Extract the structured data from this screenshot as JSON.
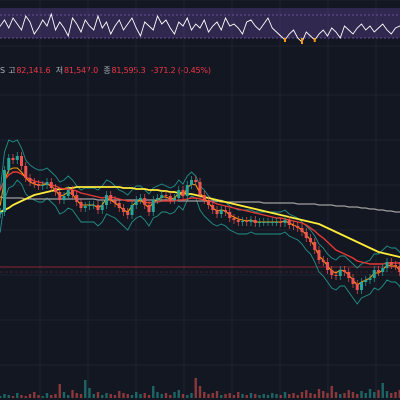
{
  "ohlc": {
    "lead": "S",
    "high_label": "고",
    "high": "82,141.6",
    "low_label": "저",
    "low": "81,547.0",
    "close_label": "종",
    "close": "81,595.3",
    "change": "-371.2 (-0.45%)"
  },
  "colors": {
    "background": "#131722",
    "grid": "#1f2330",
    "up": "#26a69a",
    "down": "#ef5350",
    "ma_fast": "#ff9800",
    "ma_mid": "#e53935",
    "ma_slow": "#ffeb3b",
    "ma_long": "#9e9e9e",
    "bollinger": "#26a69a",
    "oscillator": "#ffffff",
    "osc_band": "#7e57c2",
    "osc_fill": "#ff9800",
    "price_line": "#f23645"
  },
  "chart_data": {
    "type": "line",
    "price": [
      214,
      212,
      170,
      158,
      160,
      156,
      166,
      178,
      182,
      184,
      186,
      185,
      182,
      188,
      192,
      200,
      196,
      190,
      195,
      202,
      208,
      206,
      205,
      205,
      210,
      205,
      195,
      200,
      203,
      208,
      212,
      215,
      205,
      200,
      198,
      205,
      212,
      200,
      198,
      195,
      196,
      200,
      198,
      190,
      196,
      185,
      180,
      182,
      195,
      200,
      205,
      210,
      214,
      210,
      212,
      218,
      220,
      222,
      221,
      222,
      220,
      223,
      222,
      222,
      222,
      222,
      222,
      223,
      220,
      225,
      226,
      228,
      232,
      238,
      242,
      250,
      260,
      262,
      270,
      275,
      276,
      270,
      272,
      278,
      284,
      290,
      282,
      280,
      278,
      270,
      272,
      268,
      262,
      265,
      266,
      272,
      290
    ],
    "bollinger_upper": [
      200,
      190,
      152,
      140,
      142,
      140,
      148,
      160,
      165,
      168,
      170,
      170,
      168,
      172,
      176,
      182,
      180,
      176,
      180,
      186,
      190,
      188,
      188,
      188,
      190,
      186,
      180,
      182,
      186,
      190,
      192,
      195,
      190,
      186,
      186,
      190,
      194,
      188,
      186,
      184,
      186,
      188,
      186,
      180,
      184,
      176,
      172,
      176,
      186,
      190,
      196,
      200,
      202,
      200,
      202,
      206,
      208,
      210,
      210,
      210,
      210,
      212,
      212,
      212,
      212,
      212,
      212,
      212,
      210,
      214,
      216,
      218,
      222,
      226,
      230,
      236,
      244,
      248,
      254,
      258,
      260,
      256,
      256,
      260,
      264,
      268,
      264,
      262,
      260,
      254,
      254,
      250,
      246,
      248,
      248,
      252,
      260
    ],
    "bollinger_lower": [
      230,
      232,
      200,
      188,
      186,
      180,
      184,
      194,
      198,
      200,
      202,
      202,
      198,
      202,
      206,
      214,
      212,
      208,
      210,
      216,
      222,
      222,
      222,
      222,
      226,
      222,
      214,
      216,
      218,
      222,
      226,
      230,
      222,
      218,
      216,
      220,
      226,
      218,
      216,
      212,
      212,
      214,
      212,
      206,
      210,
      200,
      196,
      198,
      210,
      216,
      220,
      224,
      226,
      224,
      226,
      230,
      232,
      234,
      234,
      234,
      232,
      234,
      234,
      234,
      234,
      234,
      234,
      234,
      232,
      236,
      238,
      240,
      244,
      250,
      254,
      262,
      272,
      276,
      282,
      288,
      290,
      286,
      286,
      292,
      298,
      304,
      298,
      296,
      294,
      288,
      290,
      286,
      280,
      282,
      282,
      286,
      300
    ],
    "ma_fast": [
      210,
      205,
      180,
      170,
      168,
      168,
      172,
      178,
      182,
      184,
      185,
      185,
      184,
      186,
      190,
      196,
      195,
      192,
      194,
      200,
      205,
      205,
      205,
      205,
      208,
      205,
      198,
      200,
      203,
      206,
      210,
      212,
      206,
      202,
      200,
      204,
      208,
      202,
      200,
      197,
      197,
      199,
      198,
      193,
      196,
      188,
      184,
      185,
      193,
      198,
      203,
      208,
      211,
      210,
      211,
      215,
      217,
      219,
      220,
      221,
      220,
      222,
      222,
      222,
      222,
      222,
      222,
      222,
      221,
      223,
      225,
      227,
      230,
      235,
      240,
      247,
      256,
      260,
      266,
      271,
      273,
      270,
      271,
      275,
      280,
      285,
      282,
      280,
      278,
      273,
      273,
      270,
      265,
      266,
      266,
      270,
      280
    ],
    "ma_mid": [
      195,
      190,
      180,
      175,
      172,
      172,
      174,
      177,
      179,
      181,
      182,
      183,
      184,
      185,
      186,
      188,
      189,
      189,
      190,
      191,
      193,
      194,
      195,
      196,
      197,
      198,
      197,
      197,
      198,
      199,
      200,
      201,
      201,
      201,
      201,
      202,
      203,
      202,
      202,
      201,
      201,
      201,
      201,
      200,
      200,
      199,
      198,
      198,
      199,
      200,
      201,
      202,
      204,
      205,
      206,
      207,
      208,
      209,
      210,
      211,
      212,
      213,
      214,
      215,
      216,
      217,
      218,
      218,
      219,
      220,
      221,
      222,
      223,
      225,
      228,
      231,
      235,
      238,
      242,
      246,
      250,
      252,
      254,
      256,
      258,
      261,
      262,
      263,
      264,
      264,
      264,
      264,
      263,
      263,
      263,
      263,
      265
    ],
    "ma_slow": [
      213,
      212,
      210,
      208,
      205,
      203,
      201,
      199,
      197,
      195,
      194,
      193,
      192,
      191,
      190,
      189,
      189,
      188,
      188,
      187,
      187,
      187,
      187,
      187,
      187,
      187,
      187,
      187,
      187,
      187,
      188,
      188,
      188,
      189,
      189,
      189,
      190,
      190,
      190,
      191,
      191,
      192,
      192,
      193,
      193,
      194,
      194,
      195,
      196,
      197,
      198,
      199,
      200,
      201,
      202,
      203,
      204,
      205,
      206,
      207,
      208,
      209,
      210,
      211,
      212,
      213,
      214,
      215,
      216,
      217,
      218,
      219,
      220,
      221,
      222,
      223,
      224,
      226,
      228,
      230,
      232,
      234,
      236,
      238,
      240,
      242,
      244,
      246,
      248,
      250,
      252,
      253,
      254,
      255,
      256,
      257,
      258
    ],
    "ma_long": [
      197,
      197,
      198,
      198,
      198,
      198,
      198,
      199,
      199,
      199,
      199,
      199,
      199,
      199,
      199,
      199,
      199,
      199,
      199,
      199,
      199,
      199,
      199,
      199,
      200,
      200,
      200,
      200,
      200,
      200,
      200,
      200,
      200,
      200,
      200,
      200,
      200,
      200,
      200,
      200,
      200,
      200,
      200,
      201,
      201,
      201,
      201,
      201,
      201,
      201,
      201,
      201,
      201,
      202,
      202,
      202,
      202,
      202,
      202,
      202,
      202,
      202,
      202,
      203,
      203,
      203,
      203,
      203,
      203,
      203,
      203,
      204,
      204,
      204,
      204,
      204,
      205,
      205,
      205,
      205,
      206,
      206,
      206,
      207,
      207,
      207,
      208,
      208,
      209,
      209,
      210,
      210,
      211,
      211,
      212,
      212,
      213
    ],
    "volume": [
      3,
      2,
      4,
      3,
      2,
      5,
      3,
      2,
      4,
      6,
      3,
      2,
      5,
      3,
      4,
      14,
      6,
      3,
      8,
      5,
      4,
      18,
      10,
      4,
      6,
      3,
      5,
      4,
      3,
      7,
      5,
      4,
      3,
      6,
      4,
      5,
      3,
      12,
      6,
      4,
      5,
      3,
      6,
      8,
      4,
      3,
      5,
      20,
      12,
      6,
      4,
      5,
      7,
      3,
      4,
      5,
      3,
      6,
      4,
      3,
      5,
      4,
      3,
      4,
      3,
      5,
      4,
      3,
      6,
      4,
      5,
      3,
      6,
      8,
      5,
      4,
      9,
      7,
      5,
      12,
      6,
      4,
      5,
      8,
      6,
      4,
      7,
      5,
      9,
      6,
      8,
      15,
      7,
      5,
      6,
      8,
      10
    ],
    "oscillator": [
      30,
      26,
      20,
      28,
      18,
      24,
      30,
      16,
      22,
      34,
      28,
      20,
      26,
      14,
      30,
      22,
      28,
      36,
      18,
      24,
      32,
      20,
      26,
      30,
      16,
      28,
      22,
      34,
      26,
      20,
      30,
      24,
      18,
      28,
      36,
      22,
      26,
      30,
      16,
      24,
      20,
      28,
      34,
      22,
      26,
      18,
      30,
      24,
      28,
      20,
      32,
      26,
      22,
      30,
      18,
      26,
      24,
      28,
      34,
      22,
      20,
      26,
      30,
      24,
      18,
      28,
      32,
      36,
      40,
      34,
      30,
      38,
      42,
      32,
      36,
      40,
      34,
      30,
      36,
      28,
      32,
      38,
      26,
      30,
      34,
      28,
      24,
      30,
      26,
      32,
      28,
      24,
      30,
      34,
      28,
      26,
      30
    ]
  }
}
